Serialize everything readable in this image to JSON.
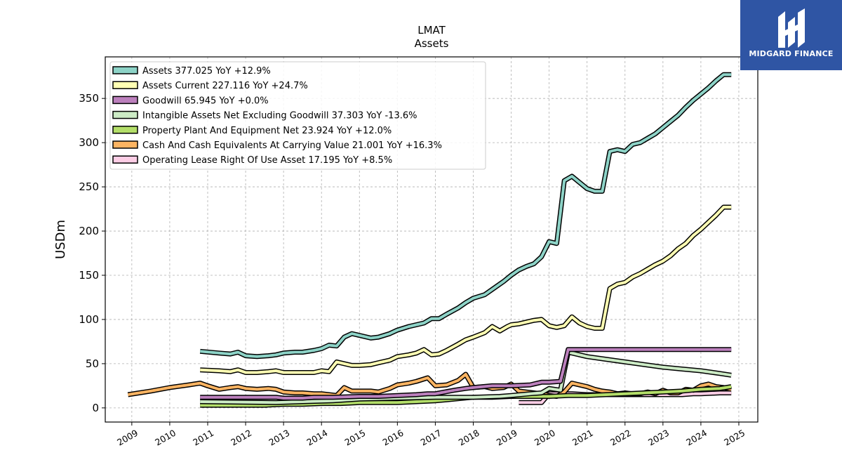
{
  "chart_data": {
    "type": "line",
    "title": "LMAT",
    "subtitle": "Assets",
    "xlabel": "",
    "ylabel": "USDm",
    "xlim": [
      2008.3,
      2025.5
    ],
    "ylim": [
      -16,
      397
    ],
    "x_ticks": [
      "2009",
      "2010",
      "2011",
      "2012",
      "2013",
      "2014",
      "2015",
      "2016",
      "2017",
      "2018",
      "2019",
      "2020",
      "2021",
      "2022",
      "2023",
      "2024",
      "2025"
    ],
    "y_ticks": [
      0,
      50,
      100,
      150,
      200,
      250,
      300,
      350
    ],
    "grid": true,
    "legend_position": "top-left",
    "series": [
      {
        "name": "Assets",
        "legend": "Assets  377.025 YoY +12.9%",
        "color": "#8dd3c7",
        "x": [
          2010.8,
          2011.3,
          2011.6,
          2011.8,
          2012.0,
          2012.3,
          2012.6,
          2012.8,
          2013.0,
          2013.3,
          2013.5,
          2013.8,
          2014.0,
          2014.2,
          2014.4,
          2014.6,
          2014.8,
          2015.0,
          2015.3,
          2015.5,
          2015.8,
          2016.0,
          2016.3,
          2016.5,
          2016.7,
          2016.9,
          2017.1,
          2017.3,
          2017.6,
          2017.8,
          2018.0,
          2018.3,
          2018.5,
          2018.8,
          2019.0,
          2019.2,
          2019.4,
          2019.6,
          2019.8,
          2020.0,
          2020.2,
          2020.4,
          2020.6,
          2020.8,
          2021.0,
          2021.2,
          2021.4,
          2021.6,
          2021.8,
          2022.0,
          2022.2,
          2022.4,
          2022.6,
          2022.8,
          2023.0,
          2023.2,
          2023.4,
          2023.6,
          2023.8,
          2024.0,
          2024.2,
          2024.4,
          2024.6,
          2024.8
        ],
        "y": [
          64,
          62,
          61,
          63,
          59,
          58,
          59,
          60,
          62,
          63,
          63,
          65,
          67,
          71,
          70,
          80,
          84,
          82,
          79,
          80,
          84,
          88,
          92,
          94,
          96,
          101,
          101,
          106,
          113,
          119,
          124,
          128,
          134,
          143,
          150,
          156,
          160,
          163,
          171,
          188,
          186,
          257,
          262,
          255,
          248,
          245,
          245,
          290,
          292,
          290,
          298,
          300,
          305,
          310,
          317,
          324,
          331,
          340,
          348,
          355,
          362,
          370,
          377,
          377
        ]
      },
      {
        "name": "Assets Current",
        "legend": "Assets Current  227.116 YoY +24.7%",
        "color": "#ffffb3",
        "x": [
          2010.8,
          2011.3,
          2011.6,
          2011.8,
          2012.0,
          2012.3,
          2012.6,
          2012.8,
          2013.0,
          2013.3,
          2013.5,
          2013.8,
          2014.0,
          2014.2,
          2014.4,
          2014.6,
          2014.8,
          2015.0,
          2015.3,
          2015.5,
          2015.8,
          2016.0,
          2016.3,
          2016.5,
          2016.7,
          2016.9,
          2017.1,
          2017.3,
          2017.6,
          2017.8,
          2018.0,
          2018.3,
          2018.5,
          2018.7,
          2018.9,
          2019.0,
          2019.2,
          2019.4,
          2019.6,
          2019.8,
          2020.0,
          2020.2,
          2020.4,
          2020.6,
          2020.8,
          2021.0,
          2021.2,
          2021.4,
          2021.6,
          2021.8,
          2022.0,
          2022.2,
          2022.4,
          2022.6,
          2022.8,
          2023.0,
          2023.2,
          2023.4,
          2023.6,
          2023.8,
          2024.0,
          2024.2,
          2024.4,
          2024.6,
          2024.8
        ],
        "y": [
          43,
          42,
          41,
          43,
          40,
          40,
          41,
          42,
          40,
          40,
          40,
          40,
          42,
          41,
          52,
          50,
          48,
          48,
          49,
          51,
          54,
          58,
          60,
          62,
          66,
          60,
          61,
          65,
          72,
          77,
          80,
          85,
          92,
          87,
          92,
          94,
          95,
          97,
          99,
          100,
          93,
          91,
          93,
          103,
          96,
          92,
          90,
          90,
          135,
          140,
          142,
          148,
          152,
          157,
          162,
          166,
          172,
          180,
          186,
          195,
          202,
          210,
          218,
          227,
          227
        ]
      },
      {
        "name": "Goodwill",
        "legend": "Goodwill  65.945 YoY +0.0%",
        "color": "#bebada",
        "x": [
          2010.8,
          2012.8,
          2013.0,
          2013.5,
          2013.8,
          2014.3,
          2015.0,
          2015.5,
          2016.0,
          2016.5,
          2016.8,
          2017.0,
          2017.5,
          2017.8,
          2018.0,
          2018.5,
          2018.8,
          2019.0,
          2019.5,
          2019.8,
          2020.0,
          2020.3,
          2020.5,
          2024.8
        ],
        "y": [
          12,
          12,
          11,
          11,
          12,
          12,
          13,
          13,
          14,
          15,
          16,
          16,
          20,
          22,
          23,
          25,
          25,
          25,
          26,
          29,
          29,
          30,
          66,
          66
        ],
        "render_color": "#bc80bd"
      },
      {
        "name": "Intangible Assets Net Excluding Goodwill",
        "legend": "Intangible Assets Net Excluding Goodwill  37.303 YoY -13.6%",
        "color": "#ccebc5",
        "x": [
          2010.8,
          2012.8,
          2013.5,
          2014.3,
          2015.0,
          2016.0,
          2017.0,
          2018.0,
          2018.7,
          2019.0,
          2019.5,
          2019.8,
          2020.0,
          2020.3,
          2020.5,
          2021.0,
          2021.5,
          2022.0,
          2022.5,
          2023.0,
          2023.5,
          2024.0,
          2024.5,
          2024.8
        ],
        "y": [
          7,
          6,
          7,
          8,
          10,
          11,
          12,
          12,
          13,
          14,
          16,
          17,
          22,
          20,
          63,
          58,
          55,
          52,
          49,
          46,
          44,
          42,
          39,
          37
        ]
      },
      {
        "name": "Property Plant And Equipment Net",
        "legend": "Property Plant And Equipment Net  23.924 YoY +12.0%",
        "color": "#b3de69",
        "x": [
          2010.8,
          2011.5,
          2012.0,
          2012.5,
          2013.0,
          2013.5,
          2014.0,
          2014.5,
          2015.0,
          2015.5,
          2016.0,
          2016.5,
          2017.0,
          2017.5,
          2018.0,
          2018.5,
          2019.0,
          2019.5,
          2020.0,
          2020.5,
          2021.0,
          2021.5,
          2022.0,
          2022.5,
          2023.0,
          2023.5,
          2024.0,
          2024.5,
          2024.8
        ],
        "y": [
          3,
          3,
          3,
          3,
          4,
          4,
          5,
          5,
          6,
          6,
          6,
          7,
          8,
          10,
          12,
          12,
          13,
          13,
          13,
          14,
          14,
          15,
          16,
          17,
          18,
          19,
          21,
          22,
          24
        ]
      },
      {
        "name": "Cash And Cash Equivalents At Carrying Value",
        "legend": "Cash And Cash Equivalents At Carrying Value  21.001 YoY +16.3%",
        "color": "#fdb462",
        "x": [
          2008.9,
          2009.5,
          2010.0,
          2010.5,
          2010.8,
          2011.0,
          2011.3,
          2011.6,
          2011.8,
          2012.0,
          2012.3,
          2012.6,
          2012.8,
          2013.0,
          2013.3,
          2013.5,
          2013.8,
          2014.0,
          2014.2,
          2014.4,
          2014.6,
          2014.8,
          2015.0,
          2015.3,
          2015.5,
          2015.8,
          2016.0,
          2016.3,
          2016.5,
          2016.8,
          2017.0,
          2017.3,
          2017.6,
          2017.8,
          2018.0,
          2018.3,
          2018.5,
          2018.8,
          2019.0,
          2019.2,
          2019.4,
          2019.6,
          2019.8,
          2020.0,
          2020.2,
          2020.4,
          2020.6,
          2020.8,
          2021.0,
          2021.2,
          2021.4,
          2021.6,
          2021.8,
          2022.0,
          2022.2,
          2022.4,
          2022.6,
          2022.8,
          2023.0,
          2023.2,
          2023.4,
          2023.6,
          2023.8,
          2024.0,
          2024.2,
          2024.4,
          2024.6,
          2024.8
        ],
        "y": [
          15,
          19,
          23,
          26,
          28,
          25,
          21,
          23,
          24,
          22,
          21,
          22,
          21,
          18,
          17,
          17,
          16,
          16,
          15,
          14,
          23,
          19,
          19,
          19,
          18,
          22,
          26,
          28,
          30,
          34,
          25,
          26,
          31,
          38,
          23,
          24,
          22,
          23,
          27,
          19,
          18,
          17,
          16,
          14,
          13,
          18,
          28,
          26,
          24,
          21,
          19,
          18,
          16,
          17,
          16,
          16,
          18,
          16,
          20,
          17,
          17,
          21,
          20,
          25,
          27,
          24,
          23,
          21
        ]
      },
      {
        "name": "Operating Lease Right Of Use Asset",
        "legend": "Operating Lease Right Of Use Asset  17.195 YoY +8.5%",
        "color": "#fccde5",
        "x": [
          2019.2,
          2019.5,
          2019.8,
          2020.0,
          2020.3,
          2020.6,
          2021.0,
          2021.5,
          2022.0,
          2022.5,
          2023.0,
          2023.5,
          2023.8,
          2024.0,
          2024.5,
          2024.8
        ],
        "y": [
          6,
          6,
          6,
          16,
          16,
          16,
          15,
          15,
          15,
          15,
          15,
          15,
          16,
          16,
          17,
          17
        ]
      }
    ]
  },
  "branding": {
    "logo_text": "MIDGARD FINANCE",
    "logo_icon": "midgard-finance-logo-icon",
    "logo_color": "#2f55a4"
  }
}
